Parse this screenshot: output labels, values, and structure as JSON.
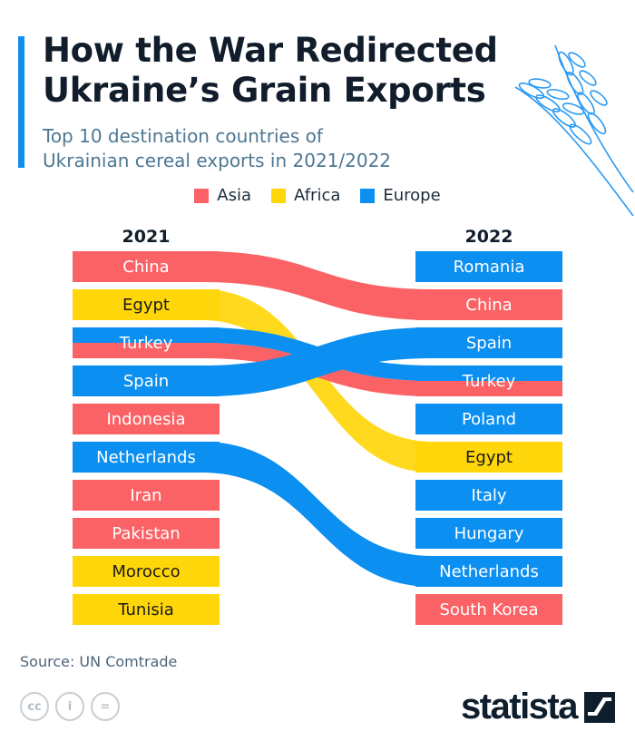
{
  "header": {
    "title_line1": "How the War Redirected",
    "title_line2": "Ukraine’s Grain Exports",
    "subtitle_line1": "Top 10 destination countries of",
    "subtitle_line2": "Ukrainian cereal exports in 2021/2022"
  },
  "colors": {
    "Asia": "#fb6265",
    "Africa": "#ffd60a",
    "Europe": "#0b8ff1",
    "accent": "#0d8ff2"
  },
  "chart_data": {
    "type": "bump-rank",
    "columns": [
      "2021",
      "2022"
    ],
    "legend": [
      {
        "name": "Asia",
        "color": "#fb6265"
      },
      {
        "name": "Africa",
        "color": "#ffd60a"
      },
      {
        "name": "Europe",
        "color": "#0b8ff1"
      }
    ],
    "rank_2021": [
      {
        "name": "China",
        "region": "Asia"
      },
      {
        "name": "Egypt",
        "region": "Africa"
      },
      {
        "name": "Turkey",
        "region": "Europe"
      },
      {
        "name": "Spain",
        "region": "Europe"
      },
      {
        "name": "Indonesia",
        "region": "Asia"
      },
      {
        "name": "Netherlands",
        "region": "Europe"
      },
      {
        "name": "Iran",
        "region": "Asia"
      },
      {
        "name": "Pakistan",
        "region": "Asia"
      },
      {
        "name": "Morocco",
        "region": "Africa"
      },
      {
        "name": "Tunisia",
        "region": "Africa"
      }
    ],
    "rank_2022": [
      {
        "name": "Romania",
        "region": "Europe"
      },
      {
        "name": "China",
        "region": "Asia"
      },
      {
        "name": "Spain",
        "region": "Europe"
      },
      {
        "name": "Turkey",
        "region": "Europe"
      },
      {
        "name": "Poland",
        "region": "Europe"
      },
      {
        "name": "Egypt",
        "region": "Africa"
      },
      {
        "name": "Italy",
        "region": "Europe"
      },
      {
        "name": "Hungary",
        "region": "Europe"
      },
      {
        "name": "Netherlands",
        "region": "Europe"
      },
      {
        "name": "South Korea",
        "region": "Asia"
      }
    ],
    "links": [
      {
        "name": "China",
        "from_rank": 1,
        "to_rank": 2,
        "color": "#fb6265"
      },
      {
        "name": "Egypt",
        "from_rank": 2,
        "to_rank": 6,
        "color": "#ffd60a"
      },
      {
        "name": "Turkey",
        "from_rank": 3,
        "to_rank": 4,
        "color": "#0b8ff1",
        "bottom_color": "#fb6265"
      },
      {
        "name": "Spain",
        "from_rank": 4,
        "to_rank": 3,
        "color": "#0b8ff1"
      },
      {
        "name": "Netherlands",
        "from_rank": 6,
        "to_rank": 9,
        "color": "#0b8ff1"
      }
    ]
  },
  "footer": {
    "source": "Source: UN Comtrade",
    "brand": "statista",
    "cc_icons": [
      {
        "icon": "cc-icon",
        "glyph": "cc"
      },
      {
        "icon": "by-icon",
        "glyph": "i"
      },
      {
        "icon": "nd-icon",
        "glyph": "="
      }
    ]
  }
}
